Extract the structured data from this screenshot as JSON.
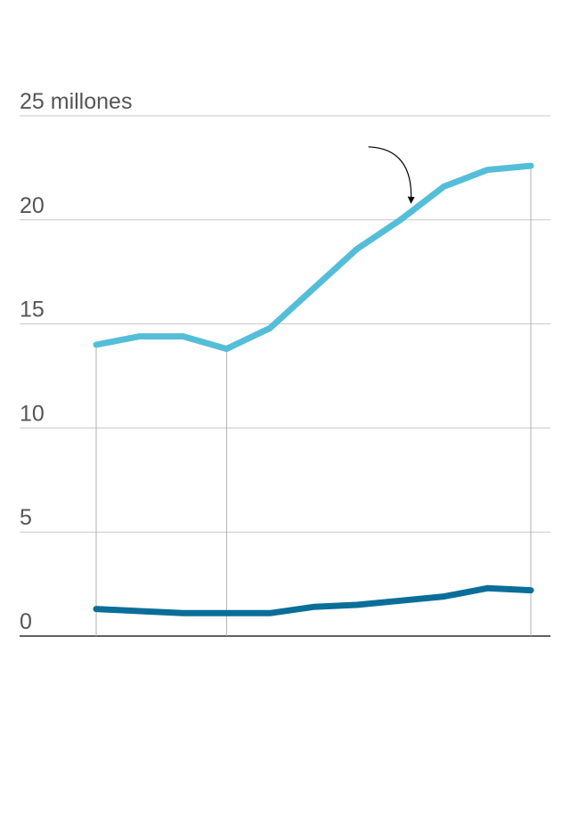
{
  "chart_data": {
    "type": "line",
    "y_unit_label": "25 millones",
    "y_ticks": [
      0,
      5,
      10,
      15,
      20,
      25
    ],
    "y_tick_labels": [
      "0",
      "5",
      "10",
      "15",
      "20",
      "25 millones"
    ],
    "ylim": [
      0,
      25
    ],
    "x": [
      0,
      1,
      2,
      3,
      4,
      5,
      6,
      7,
      8,
      9,
      10
    ],
    "x_reference_lines": [
      0,
      3,
      10
    ],
    "grid": true,
    "annotation": {
      "type": "arrow",
      "points_to_series": 0,
      "x": 7
    },
    "series": [
      {
        "color": "#54bed8",
        "values": [
          14.0,
          14.4,
          14.4,
          13.8,
          14.8,
          16.7,
          18.6,
          20.0,
          21.6,
          22.4,
          22.6
        ]
      },
      {
        "color": "#0a6e99",
        "values": [
          1.3,
          1.2,
          1.1,
          1.1,
          1.1,
          1.4,
          1.5,
          1.7,
          1.9,
          2.3,
          2.2
        ]
      }
    ]
  }
}
